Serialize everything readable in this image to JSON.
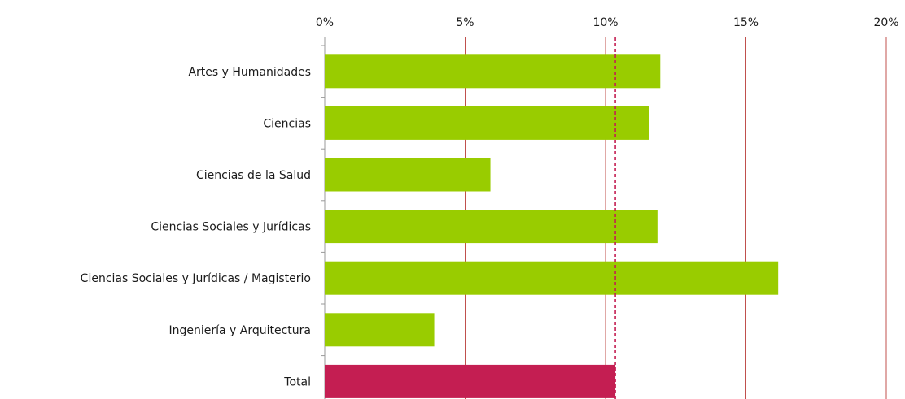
{
  "chart_data": {
    "type": "bar",
    "orientation": "horizontal",
    "categories": [
      "Artes y Humanidades",
      "Ciencias",
      "Ciencias de la Salud",
      "Ciencias Sociales y Jurídicas",
      "Ciencias Sociales y Jurídicas / Magisterio",
      "Ingeniería y Arquitectura",
      "Total"
    ],
    "values": [
      11.95,
      11.55,
      5.9,
      11.85,
      16.15,
      3.9,
      10.35
    ],
    "bar_colors": [
      "#99cc00",
      "#99cc00",
      "#99cc00",
      "#99cc00",
      "#99cc00",
      "#99cc00",
      "#c41e52"
    ],
    "reference_line": {
      "value": 10.35,
      "style": "dashed",
      "color": "#c41e52"
    },
    "xlim": [
      0,
      20
    ],
    "x_ticks": [
      0,
      5,
      10,
      15,
      20
    ],
    "x_tick_labels": [
      "0%",
      "5%",
      "10%",
      "15%",
      "20%"
    ],
    "x_axis_position": "top",
    "grid": true,
    "grid_color": "#c0504d",
    "title": "",
    "xlabel": "",
    "ylabel": ""
  }
}
